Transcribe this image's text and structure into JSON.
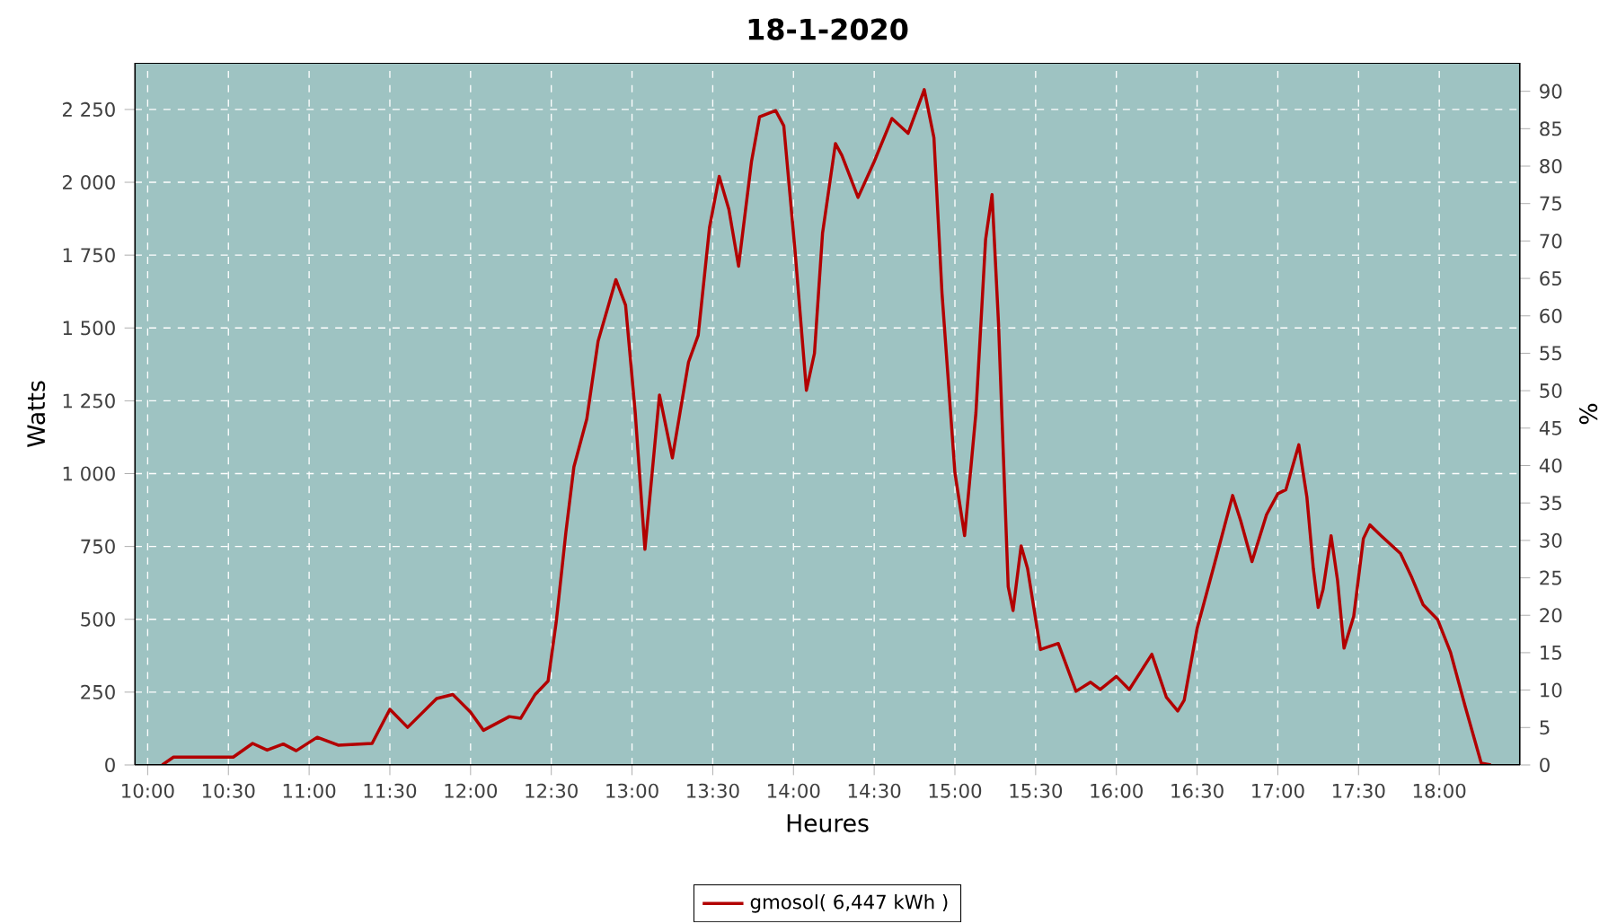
{
  "chart_data": {
    "type": "line",
    "title": "18-1-2020",
    "xlabel": "Heures",
    "ylabel": "Watts",
    "y2label": "%",
    "x": [
      10.09,
      10.16,
      10.53,
      10.65,
      10.74,
      10.84,
      10.92,
      11.05,
      11.18,
      11.39,
      11.5,
      11.61,
      11.79,
      11.89,
      12.0,
      12.08,
      12.24,
      12.31,
      12.4,
      12.48,
      12.53,
      12.59,
      12.64,
      12.72,
      12.79,
      12.9,
      12.96,
      13.02,
      13.08,
      13.17,
      13.25,
      13.35,
      13.41,
      13.48,
      13.54,
      13.6,
      13.66,
      13.74,
      13.79,
      13.89,
      13.94,
      14.01,
      14.08,
      14.13,
      14.18,
      14.26,
      14.3,
      14.4,
      14.5,
      14.61,
      14.71,
      14.81,
      14.87,
      14.92,
      15.0,
      15.06,
      15.13,
      15.19,
      15.23,
      15.27,
      15.33,
      15.36,
      15.41,
      15.45,
      15.53,
      15.64,
      15.75,
      15.84,
      15.9,
      16.0,
      16.08,
      16.22,
      16.31,
      16.38,
      16.42,
      16.5,
      16.61,
      16.72,
      16.77,
      16.84,
      16.93,
      17.0,
      17.05,
      17.13,
      17.18,
      17.22,
      17.25,
      17.28,
      17.33,
      17.37,
      17.41,
      17.47,
      17.53,
      17.57,
      17.64,
      17.76,
      17.83,
      17.9,
      17.99,
      18.07,
      18.16,
      18.26,
      18.32
    ],
    "series": [
      {
        "name": "gmosol( 6,447 kWh )",
        "color": "#b20000",
        "values": [
          0,
          27,
          27,
          74,
          51,
          72,
          49,
          95,
          68,
          74,
          191,
          129,
          228,
          242,
          181,
          119,
          166,
          160,
          242,
          288,
          489,
          797,
          1023,
          1188,
          1455,
          1666,
          1578,
          1208,
          740,
          1270,
          1054,
          1383,
          1475,
          1845,
          2020,
          1907,
          1712,
          2071,
          2225,
          2246,
          2194,
          1763,
          1286,
          1413,
          1825,
          2133,
          2092,
          1948,
          2071,
          2219,
          2168,
          2318,
          2153,
          1619,
          1003,
          787,
          1208,
          1804,
          1958,
          1516,
          612,
          530,
          752,
          674,
          396,
          417,
          253,
          284,
          259,
          304,
          259,
          380,
          232,
          185,
          222,
          468,
          695,
          925,
          838,
          698,
          859,
          931,
          945,
          1099,
          920,
          674,
          541,
          602,
          787,
          633,
          401,
          510,
          777,
          824,
          787,
          726,
          643,
          550,
          499,
          386,
          202,
          6,
          0
        ]
      }
    ],
    "xlim": [
      9.92,
      18.5
    ],
    "xticks": [
      {
        "value": 10,
        "label": "10:00"
      },
      {
        "value": 10.5,
        "label": "10:30"
      },
      {
        "value": 11,
        "label": "11:00"
      },
      {
        "value": 11.5,
        "label": "11:30"
      },
      {
        "value": 12,
        "label": "12:00"
      },
      {
        "value": 12.5,
        "label": "12:30"
      },
      {
        "value": 13,
        "label": "13:00"
      },
      {
        "value": 13.5,
        "label": "13:30"
      },
      {
        "value": 14,
        "label": "14:00"
      },
      {
        "value": 14.5,
        "label": "14:30"
      },
      {
        "value": 15,
        "label": "15:00"
      },
      {
        "value": 15.5,
        "label": "15:30"
      },
      {
        "value": 16,
        "label": "16:00"
      },
      {
        "value": 16.5,
        "label": "16:30"
      },
      {
        "value": 17,
        "label": "17:00"
      },
      {
        "value": 17.5,
        "label": "17:30"
      },
      {
        "value": 18,
        "label": "18:00"
      }
    ],
    "ylim": [
      0,
      2410
    ],
    "yticks": [
      0,
      250,
      500,
      750,
      {
        "value": 1000,
        "label": "1 000"
      },
      {
        "value": 1250,
        "label": "1 250"
      },
      {
        "value": 1500,
        "label": "1 500"
      },
      {
        "value": 1750,
        "label": "1 750"
      },
      {
        "value": 2000,
        "label": "2 000"
      },
      {
        "value": 2250,
        "label": "2 250"
      }
    ],
    "y2lim": [
      0,
      93.8
    ],
    "y2ticks": [
      0,
      5,
      10,
      15,
      20,
      25,
      30,
      35,
      40,
      45,
      50,
      55,
      60,
      65,
      70,
      75,
      80,
      85,
      90
    ],
    "grid": true,
    "legend": "bottom"
  }
}
